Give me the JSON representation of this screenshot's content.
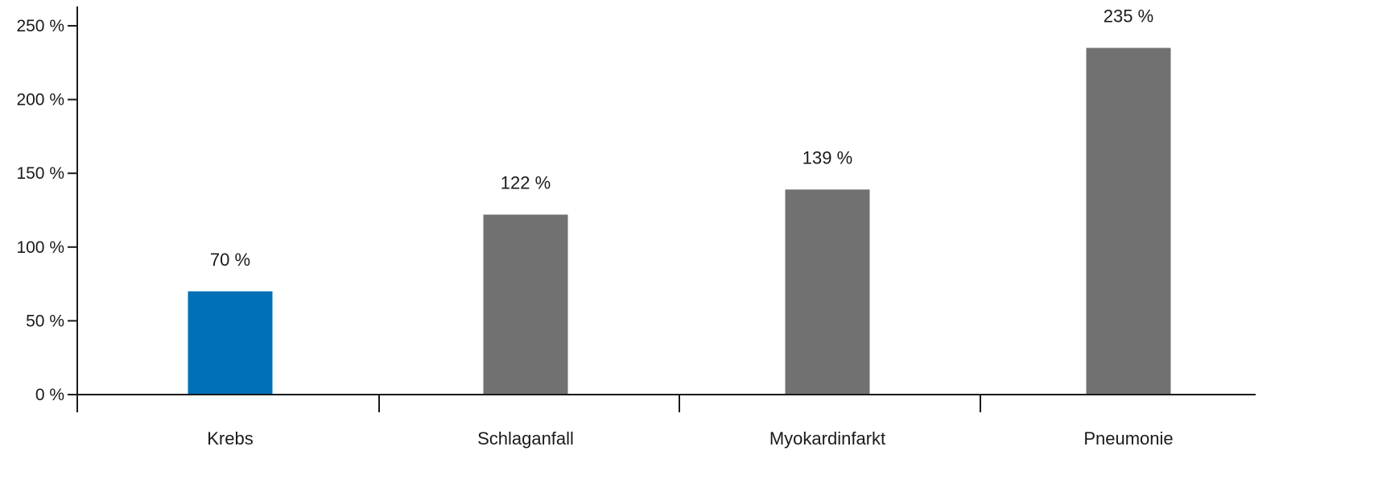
{
  "chart_data": {
    "type": "bar",
    "categories": [
      "Krebs",
      "Schlaganfall",
      "Myokardinfarkt",
      "Pneumonie"
    ],
    "values": [
      70,
      122,
      139,
      235
    ],
    "data_labels": [
      "70 %",
      "122 %",
      "139 %",
      "235 %"
    ],
    "bar_colors": [
      "#0070b8",
      "#717171",
      "#717171",
      "#717171"
    ],
    "y_ticks": [
      0,
      50,
      100,
      150,
      200,
      250
    ],
    "y_tick_labels": [
      "0 %",
      "50 %",
      "100 %",
      "150 %",
      "200 %",
      "250 %"
    ],
    "ylim": [
      0,
      250
    ],
    "title": "",
    "xlabel": "",
    "ylabel": "",
    "grid": false,
    "legend": "none"
  }
}
